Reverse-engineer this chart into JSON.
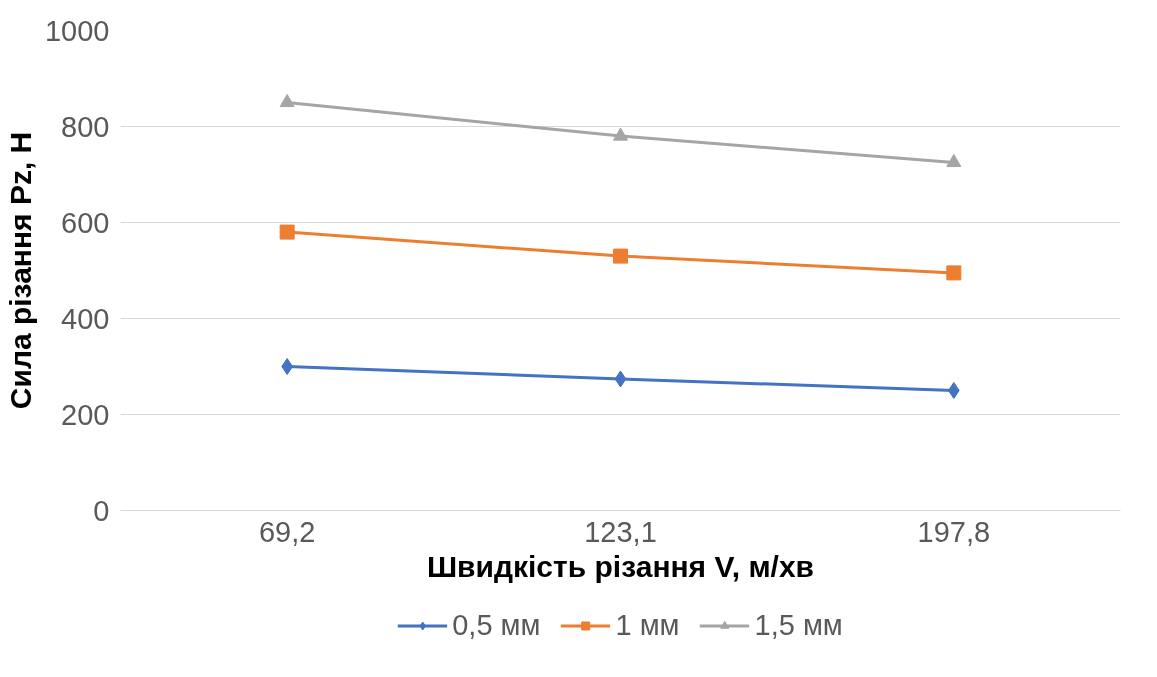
{
  "chart_data": {
    "type": "line",
    "xlabel": "Швидкість різання V, м/хв",
    "ylabel": "Сила різання Pz, Н",
    "categories": [
      "69,2",
      "123,1",
      "197,8"
    ],
    "series": [
      {
        "name": "0,5 мм",
        "color": "#4472c4",
        "marker": "diamond",
        "values": [
          300,
          274,
          250
        ]
      },
      {
        "name": "1 мм",
        "color": "#ed7d31",
        "marker": "square",
        "values": [
          580,
          530,
          495
        ]
      },
      {
        "name": "1,5 мм",
        "color": "#a5a5a5",
        "marker": "triangle",
        "values": [
          850,
          780,
          725
        ]
      }
    ],
    "ylim": [
      0,
      1000
    ],
    "yticks": [
      0,
      200,
      400,
      600,
      800,
      1000
    ],
    "grid": "y",
    "legend": "bottom"
  }
}
